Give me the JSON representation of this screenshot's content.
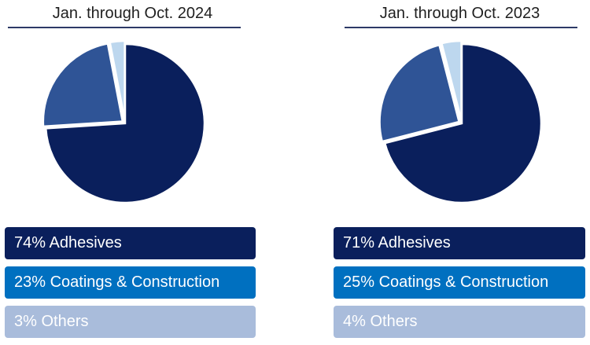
{
  "chart_data": [
    {
      "type": "pie",
      "title": "Jan. through Oct. 2024",
      "series": [
        {
          "values": [
            74,
            23,
            3
          ]
        }
      ],
      "categories": [
        "Adhesives",
        "Coatings & Construction",
        "Others"
      ],
      "labels": [
        "74% Adhesives",
        "23% Coatings & Construction",
        "3% Others"
      ],
      "colors": [
        "#0a1f5c",
        "#2f5496",
        "#bdd7ee"
      ],
      "legend_colors": [
        "#0a1f5c",
        "#0070c0",
        "#a9bcdb"
      ],
      "legend_placement": "bottom"
    },
    {
      "type": "pie",
      "title": "Jan. through Oct. 2023",
      "series": [
        {
          "values": [
            71,
            25,
            4
          ]
        }
      ],
      "categories": [
        "Adhesives",
        "Coatings & Construction",
        "Others"
      ],
      "labels": [
        "71% Adhesives",
        "25% Coatings & Construction",
        "4% Others"
      ],
      "colors": [
        "#0a1f5c",
        "#2f5496",
        "#bdd7ee"
      ],
      "legend_colors": [
        "#0a1f5c",
        "#0070c0",
        "#a9bcdb"
      ],
      "legend_placement": "bottom"
    }
  ]
}
